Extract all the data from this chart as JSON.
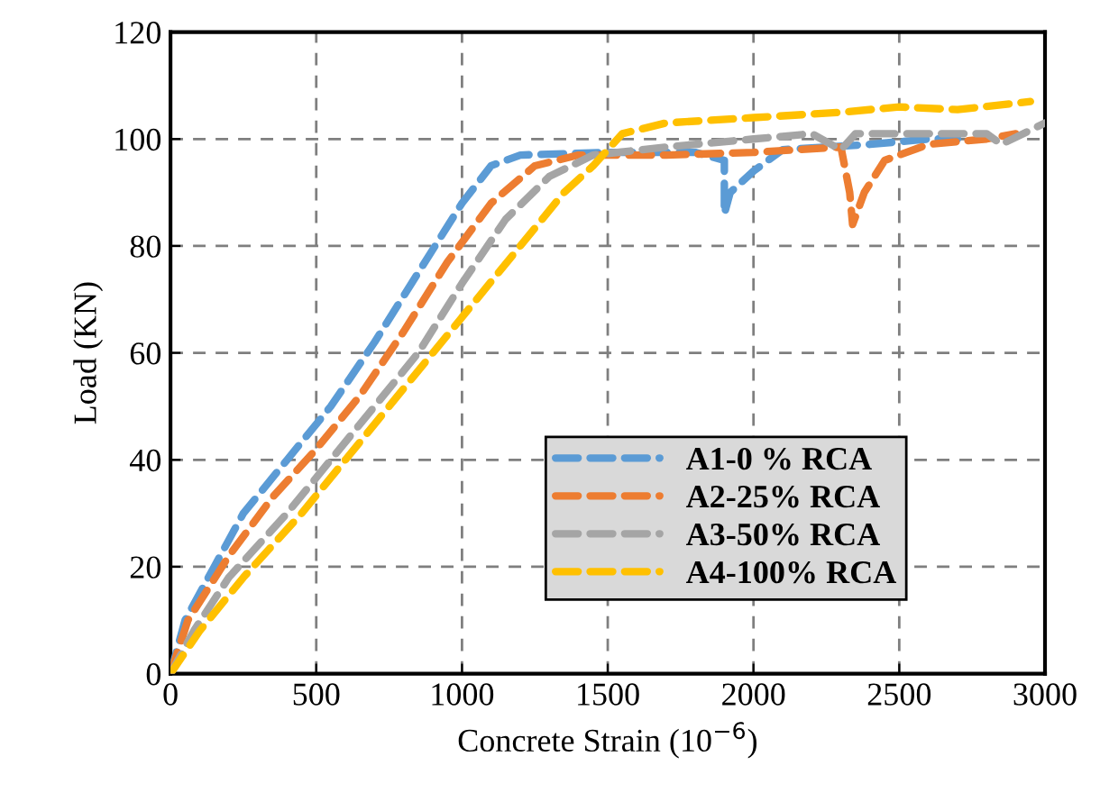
{
  "chart_data": {
    "type": "line",
    "xlabel": "Concrete Strain (10$^{−6}$)",
    "ylabel": "Load (KN)",
    "xlim": [
      0,
      3000
    ],
    "xticks": [
      0,
      500,
      1000,
      1500,
      2000,
      2500,
      3000
    ],
    "ylim": [
      0,
      120
    ],
    "yticks": [
      0,
      20,
      40,
      60,
      80,
      100,
      120
    ],
    "grid": true,
    "legend": "bottom right",
    "line_style": "dashed",
    "marker": "none",
    "series": [
      {
        "name": "A1-0 % RCA",
        "color": "#5b9bd5",
        "x": [
          0,
          50,
          150,
          250,
          400,
          550,
          700,
          850,
          1000,
          1100,
          1200,
          1500,
          1800,
          1900,
          1900,
          1920,
          2000,
          2100,
          2400,
          2600,
          2700
        ],
        "values": [
          0,
          10,
          20,
          30,
          40,
          50,
          62,
          75,
          88,
          95,
          97,
          97.5,
          97.5,
          96,
          86,
          90,
          94,
          98,
          99,
          100,
          100
        ]
      },
      {
        "name": "A2-25% RCA",
        "color": "#ed7d31",
        "x": [
          0,
          60,
          200,
          350,
          500,
          650,
          800,
          950,
          1100,
          1250,
          1400,
          1700,
          2000,
          2300,
          2330,
          2340,
          2380,
          2450,
          2600,
          2800,
          2900
        ],
        "values": [
          0,
          10,
          22,
          33,
          42,
          52,
          64,
          77,
          88,
          95,
          97,
          97,
          97.5,
          98.5,
          90,
          84,
          90,
          96,
          99,
          100,
          101
        ]
      },
      {
        "name": "A3-50% RCA",
        "color": "#a5a5a5",
        "x": [
          0,
          80,
          200,
          400,
          550,
          700,
          850,
          1000,
          1150,
          1300,
          1450,
          1700,
          2000,
          2200,
          2300,
          2350,
          2600,
          2800,
          2850,
          3000
        ],
        "values": [
          0,
          8,
          18,
          30,
          40,
          50,
          60,
          73,
          85,
          93,
          97,
          98.5,
          100,
          101,
          98,
          101,
          101,
          101,
          99,
          103
        ]
      },
      {
        "name": "A4-100% RCA",
        "color": "#ffc000",
        "x": [
          0,
          100,
          250,
          450,
          600,
          750,
          900,
          1050,
          1200,
          1350,
          1450,
          1550,
          1700,
          2000,
          2300,
          2500,
          2700,
          2950
        ],
        "values": [
          0,
          8,
          18,
          30,
          40,
          50,
          60,
          70,
          80,
          90,
          95,
          101,
          103,
          104,
          105,
          106,
          105.5,
          107
        ]
      }
    ]
  }
}
